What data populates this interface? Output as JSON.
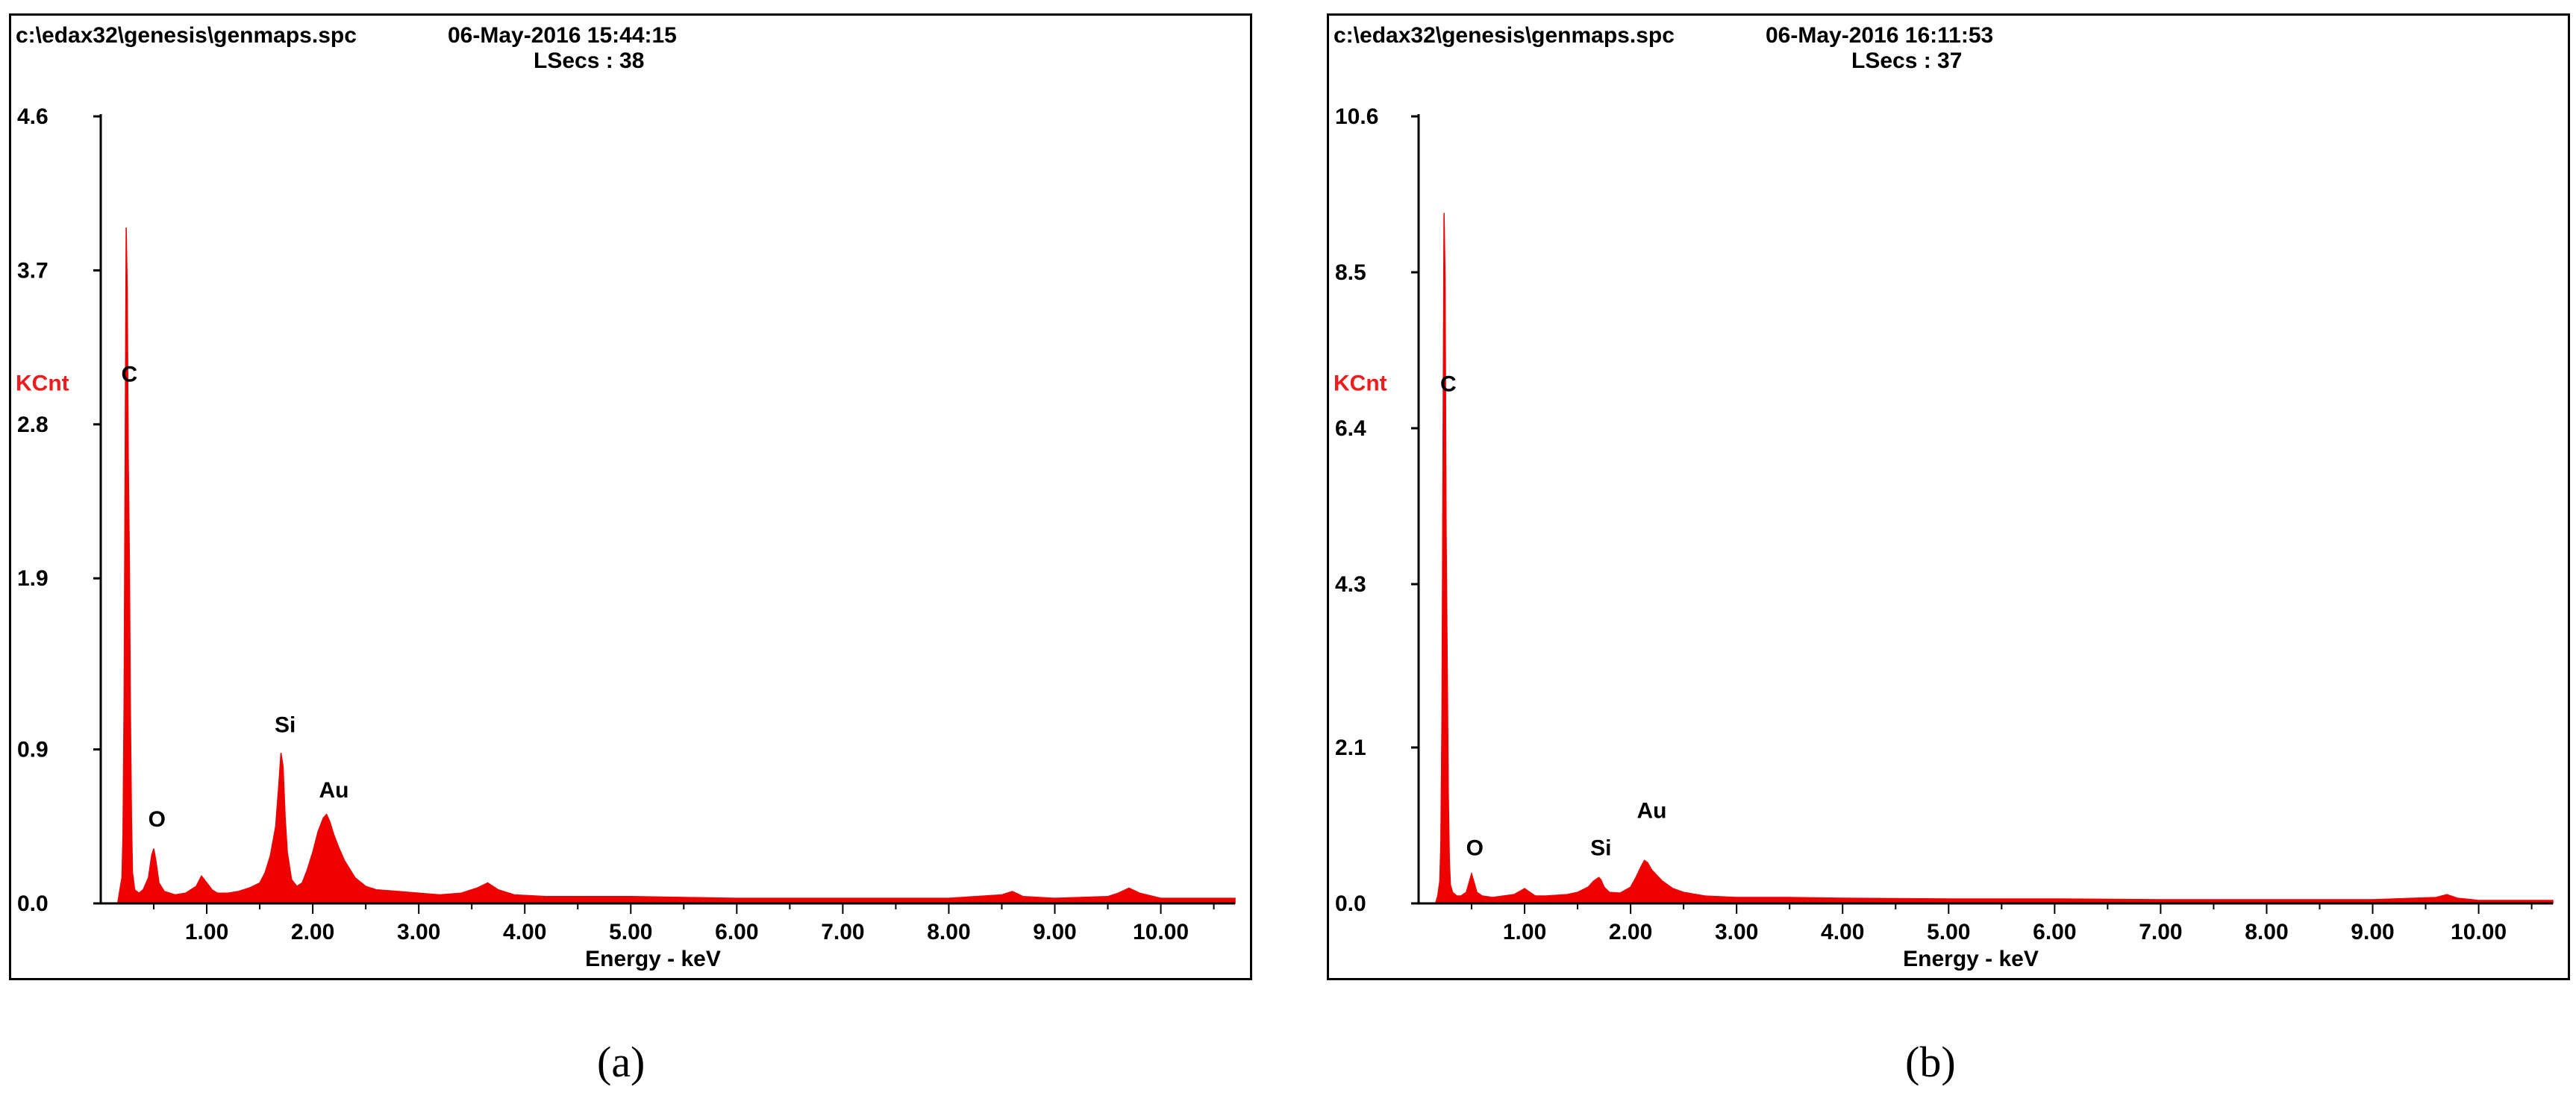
{
  "colors": {
    "spectrum": "#ee0000",
    "ylabel": "#ee1c1c",
    "axis": "#000000"
  },
  "chart_data": [
    {
      "type": "area",
      "panel_label": "(a)",
      "header_path": "c:\\edax32\\genesis\\genmaps.spc",
      "header_datetime": "06-May-2016 15:44:15",
      "header_lsecs": "LSecs :  38",
      "xlabel": "Energy - keV",
      "ylabel": "KCnt",
      "xlim": [
        0,
        10.7
      ],
      "ylim": [
        0,
        4.6
      ],
      "xticks": [
        "1.00",
        "2.00",
        "3.00",
        "4.00",
        "5.00",
        "6.00",
        "7.00",
        "8.00",
        "9.00",
        "10.00"
      ],
      "xtick_values": [
        1,
        2,
        3,
        4,
        5,
        6,
        7,
        8,
        9,
        10
      ],
      "yticks": [
        "0.0",
        "0.9",
        "1.9",
        "2.8",
        "3.7",
        "4.6"
      ],
      "ytick_values": [
        0,
        0.9,
        1.9,
        2.8,
        3.7,
        4.6
      ],
      "peak_labels": [
        {
          "text": "C",
          "x": 0.27,
          "y": 3.05
        },
        {
          "text": "O",
          "x": 0.53,
          "y": 0.45
        },
        {
          "text": "Si",
          "x": 1.74,
          "y": 1.0
        },
        {
          "text": "Au",
          "x": 2.2,
          "y": 0.62
        }
      ],
      "x": [
        0.1,
        0.16,
        0.18,
        0.2,
        0.21,
        0.22,
        0.23,
        0.24,
        0.25,
        0.26,
        0.27,
        0.28,
        0.29,
        0.3,
        0.32,
        0.36,
        0.4,
        0.45,
        0.48,
        0.5,
        0.52,
        0.55,
        0.6,
        0.7,
        0.8,
        0.9,
        0.95,
        1.0,
        1.05,
        1.1,
        1.2,
        1.3,
        1.4,
        1.5,
        1.55,
        1.6,
        1.65,
        1.68,
        1.7,
        1.72,
        1.74,
        1.76,
        1.8,
        1.85,
        1.9,
        1.95,
        2.0,
        2.05,
        2.1,
        2.13,
        2.16,
        2.2,
        2.25,
        2.3,
        2.35,
        2.4,
        2.5,
        2.6,
        2.8,
        3.0,
        3.2,
        3.4,
        3.55,
        3.65,
        3.75,
        3.9,
        4.2,
        4.6,
        5.0,
        6.0,
        7.0,
        8.0,
        8.5,
        8.6,
        8.7,
        9.0,
        9.5,
        9.6,
        9.7,
        9.8,
        10.0,
        10.7
      ],
      "y": [
        0,
        0,
        0.08,
        0.15,
        0.4,
        1.2,
        2.6,
        3.95,
        3.6,
        2.6,
        2.0,
        1.1,
        0.5,
        0.18,
        0.08,
        0.06,
        0.08,
        0.15,
        0.28,
        0.32,
        0.25,
        0.12,
        0.07,
        0.05,
        0.06,
        0.1,
        0.16,
        0.12,
        0.08,
        0.06,
        0.06,
        0.07,
        0.09,
        0.12,
        0.18,
        0.28,
        0.45,
        0.7,
        0.88,
        0.8,
        0.5,
        0.3,
        0.14,
        0.1,
        0.12,
        0.2,
        0.3,
        0.42,
        0.5,
        0.52,
        0.48,
        0.4,
        0.32,
        0.25,
        0.2,
        0.15,
        0.1,
        0.08,
        0.07,
        0.06,
        0.05,
        0.06,
        0.09,
        0.12,
        0.08,
        0.05,
        0.04,
        0.04,
        0.04,
        0.03,
        0.03,
        0.03,
        0.05,
        0.07,
        0.04,
        0.03,
        0.04,
        0.06,
        0.09,
        0.06,
        0.03,
        0.03
      ]
    },
    {
      "type": "area",
      "panel_label": "(b)",
      "header_path": "c:\\edax32\\genesis\\genmaps.spc",
      "header_datetime": "06-May-2016 16:11:53",
      "header_lsecs": "LSecs :  37",
      "xlabel": "Energy - keV",
      "ylabel": "KCnt",
      "xlim": [
        0,
        10.7
      ],
      "ylim": [
        0,
        10.6
      ],
      "xticks": [
        "1.00",
        "2.00",
        "3.00",
        "4.00",
        "5.00",
        "6.00",
        "7.00",
        "8.00",
        "9.00",
        "10.00"
      ],
      "xtick_values": [
        1,
        2,
        3,
        4,
        5,
        6,
        7,
        8,
        9,
        10
      ],
      "yticks": [
        "0.0",
        "2.1",
        "4.3",
        "6.4",
        "8.5",
        "10.6"
      ],
      "ytick_values": [
        0,
        2.1,
        4.3,
        6.4,
        8.5,
        10.6
      ],
      "peak_labels": [
        {
          "text": "C",
          "x": 0.28,
          "y": 6.9
        },
        {
          "text": "O",
          "x": 0.53,
          "y": 0.65
        },
        {
          "text": "Si",
          "x": 1.72,
          "y": 0.65
        },
        {
          "text": "Au",
          "x": 2.2,
          "y": 1.15
        }
      ],
      "x": [
        0.1,
        0.16,
        0.18,
        0.2,
        0.21,
        0.22,
        0.23,
        0.24,
        0.25,
        0.26,
        0.27,
        0.28,
        0.29,
        0.3,
        0.32,
        0.36,
        0.4,
        0.45,
        0.48,
        0.5,
        0.52,
        0.55,
        0.6,
        0.7,
        0.8,
        0.9,
        1.0,
        1.05,
        1.1,
        1.2,
        1.4,
        1.5,
        1.6,
        1.65,
        1.7,
        1.72,
        1.75,
        1.8,
        1.9,
        2.0,
        2.05,
        2.1,
        2.13,
        2.16,
        2.2,
        2.3,
        2.4,
        2.5,
        2.7,
        3.0,
        3.5,
        4.0,
        5.0,
        6.0,
        7.0,
        8.0,
        9.0,
        9.6,
        9.7,
        9.8,
        10.0,
        10.7
      ],
      "y": [
        0,
        0,
        0.1,
        0.3,
        0.8,
        2.5,
        6.0,
        9.3,
        8.4,
        5.0,
        3.2,
        1.5,
        0.6,
        0.25,
        0.15,
        0.1,
        0.1,
        0.15,
        0.3,
        0.4,
        0.3,
        0.15,
        0.1,
        0.08,
        0.1,
        0.12,
        0.2,
        0.15,
        0.1,
        0.1,
        0.12,
        0.15,
        0.22,
        0.3,
        0.35,
        0.32,
        0.22,
        0.15,
        0.14,
        0.22,
        0.35,
        0.5,
        0.58,
        0.55,
        0.45,
        0.3,
        0.2,
        0.15,
        0.1,
        0.08,
        0.08,
        0.07,
        0.06,
        0.06,
        0.05,
        0.05,
        0.05,
        0.08,
        0.12,
        0.07,
        0.04,
        0.04
      ]
    }
  ]
}
